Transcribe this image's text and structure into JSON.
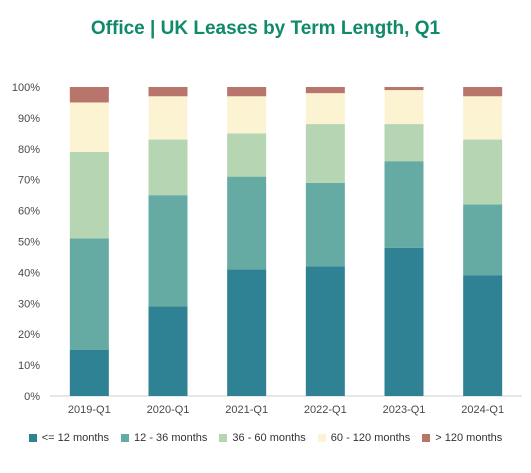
{
  "chart_data": {
    "type": "bar",
    "stacked": true,
    "title": "Office | UK Leases by Term Length, Q1",
    "xlabel": "",
    "ylabel": "",
    "ylim": [
      0,
      100
    ],
    "yticks": [
      "0%",
      "10%",
      "20%",
      "30%",
      "40%",
      "50%",
      "60%",
      "70%",
      "80%",
      "90%",
      "100%"
    ],
    "categories": [
      "2019-Q1",
      "2020-Q1",
      "2021-Q1",
      "2022-Q1",
      "2023-Q1",
      "2024-Q1"
    ],
    "series": [
      {
        "name": "<= 12 months",
        "color": "#2e8294",
        "values": [
          15,
          29,
          41,
          42,
          48,
          39
        ]
      },
      {
        "name": "12 - 36 months",
        "color": "#66aba3",
        "values": [
          36,
          36,
          30,
          27,
          28,
          23
        ]
      },
      {
        "name": "36 - 60 months",
        "color": "#b6d6b3",
        "values": [
          28,
          18,
          14,
          19,
          12,
          21
        ]
      },
      {
        "name": "60 - 120 months",
        "color": "#fcf3d3",
        "values": [
          16,
          14,
          12,
          10,
          11,
          14
        ]
      },
      {
        "name": "> 120 months",
        "color": "#b8756c",
        "values": [
          5,
          3,
          3,
          2,
          1,
          3
        ]
      }
    ],
    "grid": false,
    "legend_position": "bottom"
  }
}
